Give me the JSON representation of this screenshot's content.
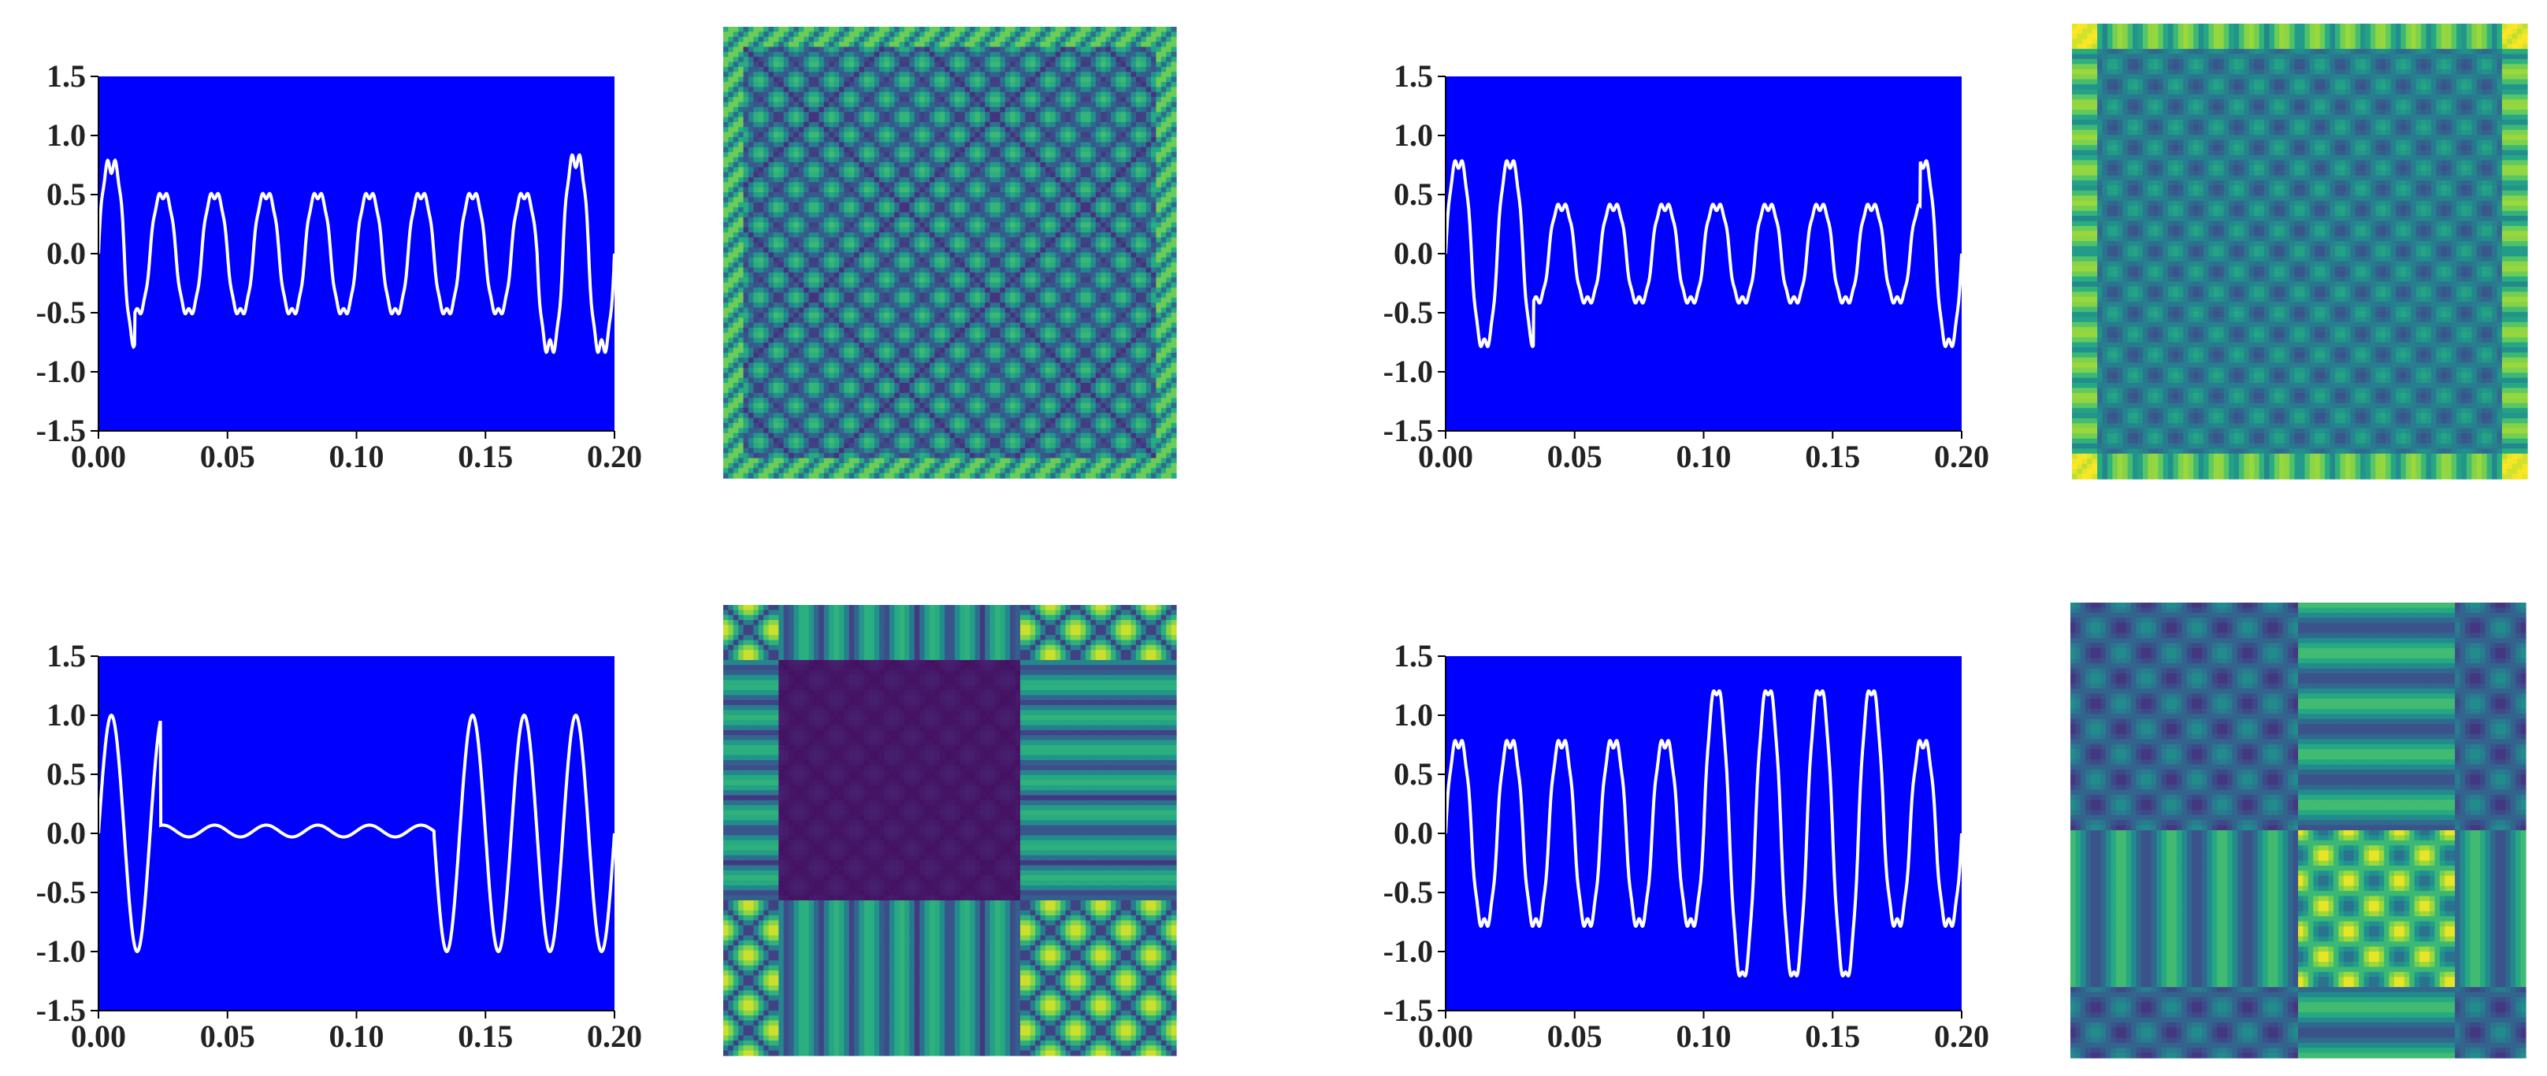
{
  "colors": {
    "plot_background": "#0000ff",
    "signal_line": "#ffffff",
    "axis": "#000000",
    "colormap": "viridis"
  },
  "chart_data": [
    {
      "type": "line",
      "xlim": [
        0.0,
        0.2
      ],
      "ylim": [
        -1.5,
        1.5
      ],
      "xticks": [
        "0.00",
        "0.05",
        "0.10",
        "0.15",
        "0.20"
      ],
      "yticks": [
        "1.5",
        "1.0",
        "0.5",
        "0.0",
        "-0.5",
        "-1.0",
        "-1.5"
      ],
      "grid": false,
      "series": [
        {
          "segments": [
            {
              "x0": 0.0,
              "x1": 0.014,
              "freq": 50,
              "amp": 0.85,
              "ripple": 0.2
            },
            {
              "x0": 0.014,
              "x1": 0.17,
              "freq": 50,
              "amp": 0.55,
              "ripple": 0.1
            },
            {
              "x0": 0.17,
              "x1": 0.2,
              "freq": 50,
              "amp": 0.9,
              "ripple": 0.2
            }
          ]
        }
      ]
    },
    {
      "type": "heatmap",
      "colormap": "viridis",
      "pattern": "diagonal-lattice",
      "border": "bright"
    },
    {
      "type": "line",
      "xlim": [
        0.0,
        0.2
      ],
      "ylim": [
        -1.5,
        1.5
      ],
      "xticks": [
        "0.00",
        "0.05",
        "0.10",
        "0.15",
        "0.20"
      ],
      "yticks": [
        "1.5",
        "1.0",
        "0.5",
        "0.0",
        "-0.5",
        "-1.0",
        "-1.5"
      ],
      "grid": false,
      "series": [
        {
          "segments": [
            {
              "x0": 0.0,
              "x1": 0.034,
              "freq": 50,
              "amp": 0.85,
              "ripple": 0.15
            },
            {
              "x0": 0.034,
              "x1": 0.184,
              "freq": 50,
              "amp": 0.45,
              "ripple": 0.1
            },
            {
              "x0": 0.184,
              "x1": 0.2,
              "freq": 50,
              "amp": 0.85,
              "ripple": 0.15
            }
          ]
        }
      ]
    },
    {
      "type": "heatmap",
      "colormap": "viridis",
      "pattern": "grid-lattice",
      "border": "bright-corners"
    },
    {
      "type": "line",
      "xlim": [
        0.0,
        0.2
      ],
      "ylim": [
        -1.5,
        1.5
      ],
      "xticks": [
        "0.00",
        "0.05",
        "0.10",
        "0.15",
        "0.20"
      ],
      "yticks": [
        "1.5",
        "1.0",
        "0.5",
        "0.0",
        "-0.5",
        "-1.0",
        "-1.5"
      ],
      "grid": false,
      "series": [
        {
          "segments": [
            {
              "x0": 0.0,
              "x1": 0.024,
              "freq": 50,
              "amp": 1.0,
              "ripple": 0.0
            },
            {
              "x0": 0.024,
              "x1": 0.13,
              "freq": 50,
              "amp": 0.05,
              "ripple": 0.0,
              "offset": 0.02
            },
            {
              "x0": 0.13,
              "x1": 0.2,
              "freq": 50,
              "amp": 1.0,
              "ripple": 0.0
            }
          ]
        }
      ]
    },
    {
      "type": "heatmap",
      "colormap": "viridis",
      "pattern": "sag-block",
      "breakpoints": [
        0.12,
        0.65
      ]
    },
    {
      "type": "line",
      "xlim": [
        0.0,
        0.2
      ],
      "ylim": [
        -1.5,
        1.5
      ],
      "xticks": [
        "0.00",
        "0.05",
        "0.10",
        "0.15",
        "0.20"
      ],
      "yticks": [
        "1.5",
        "1.0",
        "0.5",
        "0.0",
        "-0.5",
        "-1.0",
        "-1.5"
      ],
      "grid": false,
      "series": [
        {
          "segments": [
            {
              "x0": 0.0,
              "x1": 0.1,
              "freq": 50,
              "amp": 0.85,
              "ripple": 0.15
            },
            {
              "x0": 0.1,
              "x1": 0.17,
              "freq": 50,
              "amp": 1.3,
              "ripple": 0.15
            },
            {
              "x0": 0.17,
              "x1": 0.2,
              "freq": 50,
              "amp": 0.85,
              "ripple": 0.15
            }
          ]
        }
      ]
    },
    {
      "type": "heatmap",
      "colormap": "viridis",
      "pattern": "swell-block",
      "breakpoints": [
        0.5,
        0.85
      ]
    }
  ]
}
